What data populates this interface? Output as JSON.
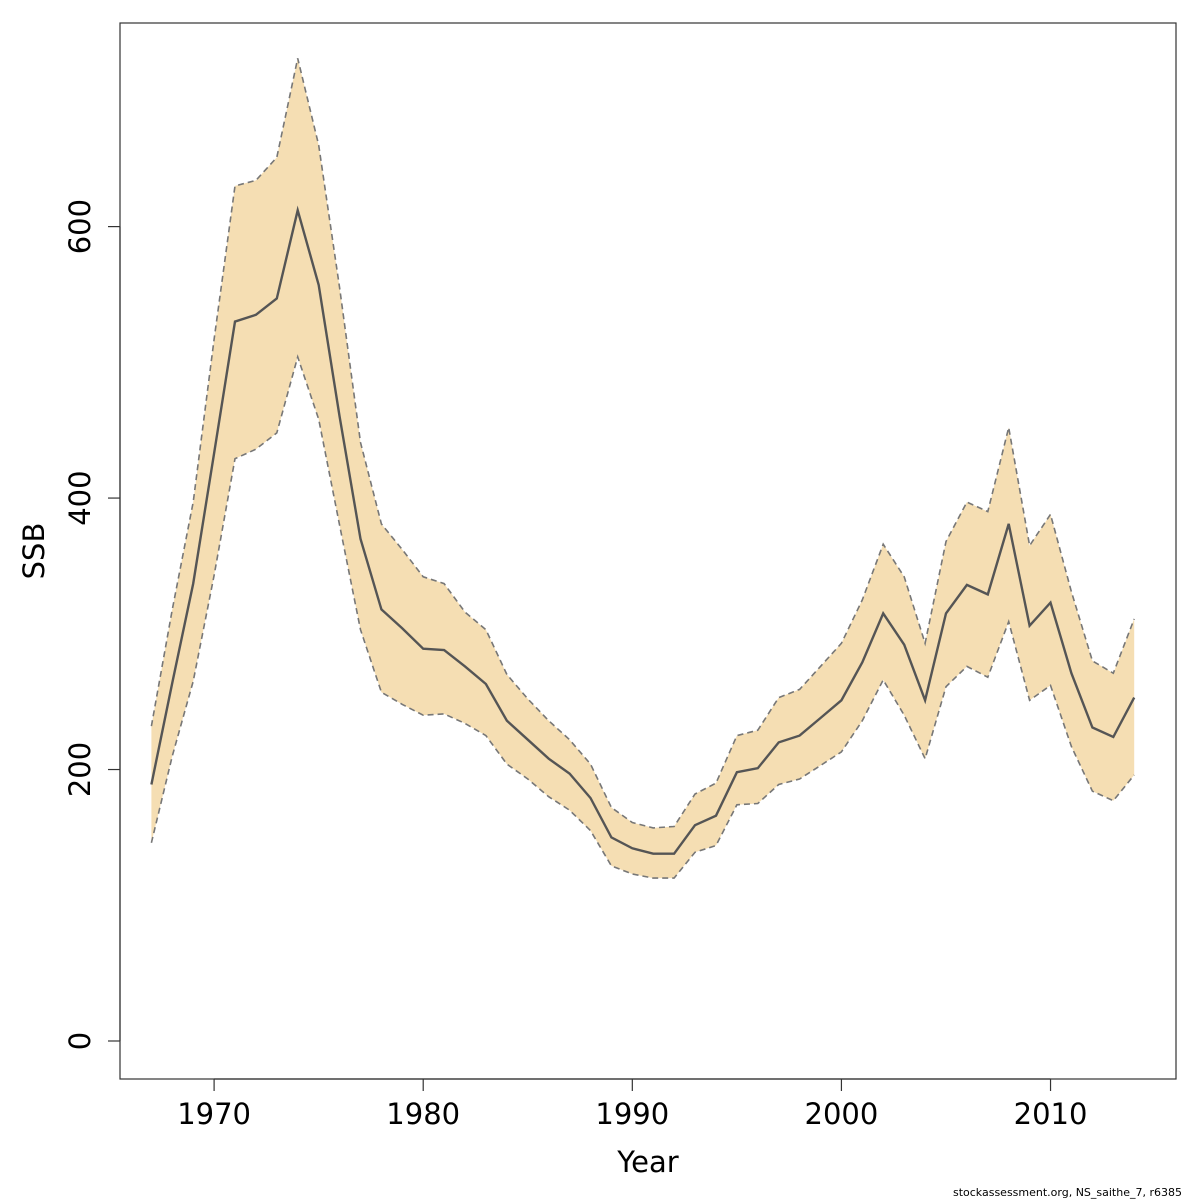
{
  "chart_data": {
    "type": "line",
    "title": "",
    "xlabel": "Year",
    "ylabel": "SSB",
    "xlim": [
      1965.5,
      2016
    ],
    "ylim": [
      -28,
      750
    ],
    "x_ticks": [
      1970,
      1980,
      1990,
      2000,
      2010
    ],
    "y_ticks": [
      0,
      200,
      400,
      600
    ],
    "grid": false,
    "legend": "none",
    "colors": {
      "band": "#f5deb3",
      "line": "#555555",
      "bound": "#777777",
      "axis": "#333333"
    },
    "x": [
      1967,
      1968,
      1969,
      1970,
      1971,
      1972,
      1973,
      1974,
      1975,
      1976,
      1977,
      1978,
      1979,
      1980,
      1981,
      1982,
      1983,
      1984,
      1985,
      1986,
      1987,
      1988,
      1989,
      1990,
      1991,
      1992,
      1993,
      1994,
      1995,
      1996,
      1997,
      1998,
      1999,
      2000,
      2001,
      2002,
      2003,
      2004,
      2005,
      2006,
      2007,
      2008,
      2009,
      2010,
      2011,
      2012,
      2013,
      2014
    ],
    "series": [
      {
        "role": "estimate",
        "values": [
          189,
          264,
          337,
          433,
          530,
          535,
          547,
          612,
          557,
          460,
          370,
          318,
          304,
          289,
          288,
          276,
          263,
          236,
          222,
          208,
          197,
          179,
          150,
          142,
          138,
          138,
          159,
          166,
          198,
          201,
          220,
          225,
          238,
          251,
          279,
          315,
          292,
          251,
          315,
          336,
          329,
          381,
          306,
          323,
          271,
          231,
          224,
          253
        ]
      },
      {
        "role": "upper",
        "values": [
          232,
          318,
          397,
          517,
          630,
          634,
          651,
          724,
          660,
          555,
          441,
          381,
          362,
          342,
          337,
          316,
          303,
          270,
          252,
          236,
          222,
          204,
          172,
          161,
          157,
          158,
          182,
          190,
          225,
          229,
          253,
          259,
          276,
          293,
          325,
          366,
          342,
          293,
          368,
          397,
          390,
          452,
          365,
          388,
          331,
          280,
          271,
          311
        ]
      },
      {
        "role": "lower",
        "values": [
          146,
          210,
          265,
          343,
          429,
          436,
          448,
          504,
          458,
          380,
          303,
          257,
          248,
          240,
          241,
          234,
          225,
          204,
          193,
          180,
          170,
          155,
          129,
          123,
          120,
          120,
          139,
          144,
          174,
          175,
          189,
          193,
          203,
          213,
          236,
          266,
          240,
          208,
          261,
          276,
          268,
          309,
          251,
          262,
          217,
          184,
          177,
          196
        ]
      }
    ]
  },
  "footer": {
    "text": "stockassessment.org, NS_saithe_7, r6385"
  }
}
